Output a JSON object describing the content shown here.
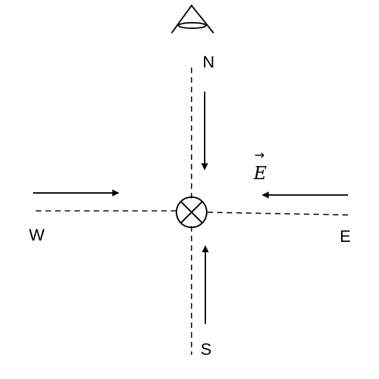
{
  "labels": {
    "north": "N",
    "south": "S",
    "east": "E",
    "west": "W",
    "field_symbol": "E",
    "field_vector_mark": "→"
  },
  "icons": {
    "observer": "eye-icon",
    "center": "circle-cross-icon"
  },
  "colors": {
    "ink": "#000000",
    "background": "#ffffff"
  }
}
